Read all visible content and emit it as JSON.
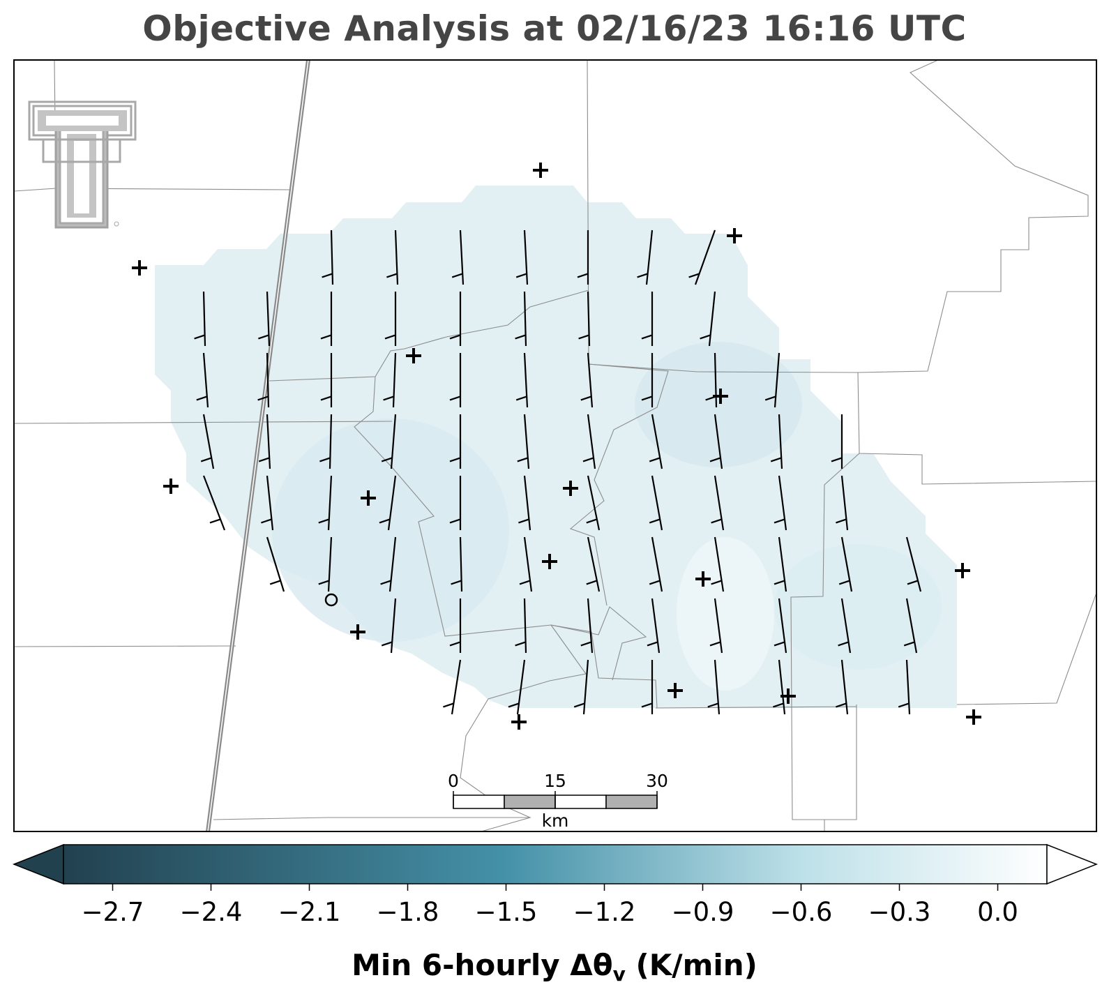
{
  "title": "Objective Analysis at 02/16/23 16:16 UTC",
  "colorbar": {
    "label_main": "Min 6-hourly Δθ",
    "label_sub": "v",
    "label_tail": " (K/min)",
    "ticks": [
      "−2.7",
      "−2.4",
      "−2.1",
      "−1.8",
      "−1.5",
      "−1.2",
      "−0.9",
      "−0.6",
      "−0.3",
      "0.0"
    ],
    "tick_values": [
      -2.7,
      -2.4,
      -2.1,
      -1.8,
      -1.5,
      -1.2,
      -0.9,
      -0.6,
      -0.3,
      0.0
    ],
    "range": [
      -2.85,
      0.15
    ],
    "color_low": "#22414f",
    "color_mid": "#4591a8",
    "color_light": "#bde0e8",
    "color_high": "#ffffff",
    "extend": "both"
  },
  "scalebar": {
    "labels": [
      "0",
      "15",
      "30"
    ],
    "unit": "km",
    "segment_colors": [
      "#ffffff",
      "#b0b0b0",
      "#ffffff",
      "#b0b0b0"
    ]
  },
  "logo": {
    "name": "Texas Tech Double T",
    "color": "#a6a6a6"
  },
  "field": {
    "fill_color": "#e2f0f4",
    "value_approx": -0.5
  },
  "stations": {
    "marker": "plus",
    "special_marker": "circle"
  }
}
